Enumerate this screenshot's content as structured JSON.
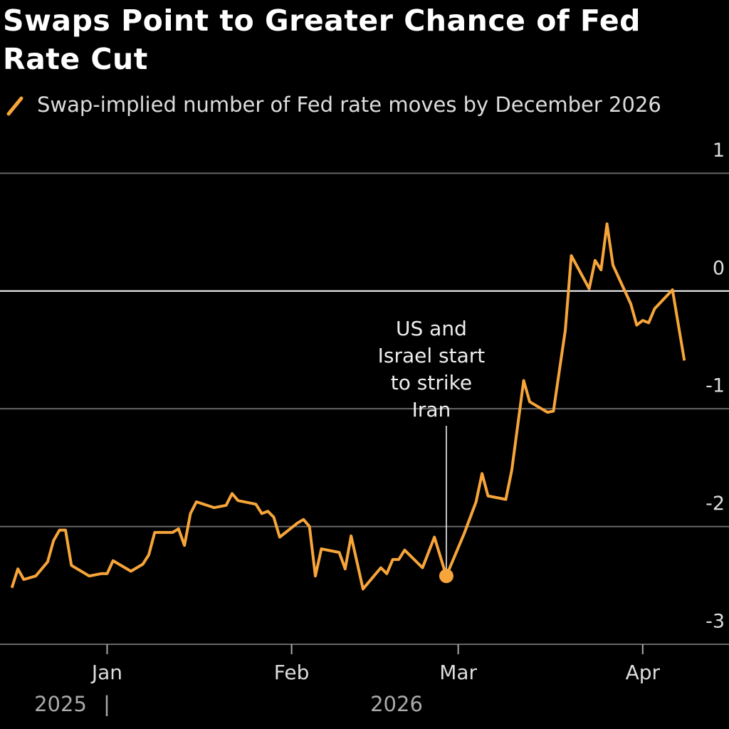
{
  "chart_data": {
    "type": "line",
    "title": "Swaps Point to Greater Chance of Fed Rate Cut",
    "x": [
      -16,
      -15,
      -14,
      -12,
      -10,
      -9,
      -8,
      -7,
      -6,
      -3,
      -1,
      0,
      1,
      4,
      6,
      7,
      8,
      11,
      12,
      13,
      14,
      15,
      18,
      20,
      21,
      22,
      25,
      26,
      27,
      28,
      29,
      32,
      33,
      34,
      35,
      36,
      39,
      40,
      41,
      43,
      46,
      47,
      48,
      49,
      50,
      53,
      55,
      57,
      60,
      62,
      63,
      64,
      67,
      68,
      70,
      71,
      74,
      75,
      77,
      78,
      81,
      82,
      83,
      84,
      85,
      88,
      89,
      90,
      91,
      92,
      95,
      97
    ],
    "series": [
      {
        "name": "Swap-implied number of Fed rate moves by December 2026",
        "color": "#f7a53a",
        "values": [
          -2.52,
          -2.36,
          -2.45,
          -2.42,
          -2.3,
          -2.12,
          -2.03,
          -2.03,
          -2.33,
          -2.42,
          -2.4,
          -2.4,
          -2.29,
          -2.38,
          -2.32,
          -2.24,
          -2.05,
          -2.05,
          -2.02,
          -2.16,
          -1.89,
          -1.79,
          -1.84,
          -1.82,
          -1.72,
          -1.78,
          -1.81,
          -1.89,
          -1.87,
          -1.92,
          -2.09,
          -1.97,
          -1.94,
          -2.0,
          -2.42,
          -2.19,
          -2.22,
          -2.36,
          -2.08,
          -2.53,
          -2.35,
          -2.4,
          -2.28,
          -2.28,
          -2.2,
          -2.35,
          -2.09,
          -2.42,
          -2.06,
          -1.79,
          -1.55,
          -1.74,
          -1.77,
          -1.52,
          -0.76,
          -0.94,
          -1.03,
          -1.02,
          -0.33,
          0.3,
          0.02,
          0.26,
          0.18,
          0.57,
          0.22,
          -0.11,
          -0.29,
          -0.25,
          -0.27,
          -0.15,
          0.01,
          -0.59
        ]
      }
    ],
    "xlim": [
      -18,
      104.5
    ],
    "xticks": [
      {
        "value": 0,
        "label": "Jan"
      },
      {
        "value": 31,
        "label": "Feb"
      },
      {
        "value": 59,
        "label": "Mar"
      },
      {
        "value": 90,
        "label": "Apr"
      }
    ],
    "years": [
      "2025",
      "2026"
    ],
    "ylim": [
      -3,
      1.25
    ],
    "yticks": [
      -3,
      -2,
      -1,
      0,
      1
    ],
    "grid": true,
    "annotation": {
      "text": [
        "US and",
        "Israel start",
        "to strike",
        "Iran"
      ],
      "x": 57
    }
  }
}
